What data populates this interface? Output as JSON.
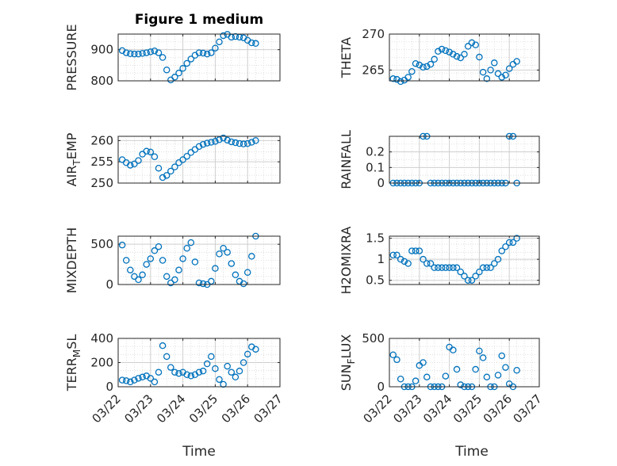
{
  "figure": {
    "title": "Figure 1 medium"
  },
  "chart_data": [
    {
      "type": "scatter",
      "panel": "PRESSURE",
      "ylabel": "PRESSURE",
      "xlim": [
        "03/22",
        "03/27"
      ],
      "ylim": [
        800,
        950
      ],
      "yticks": [
        800,
        900
      ],
      "xticks": [
        "03/22",
        "03/23",
        "03/24",
        "03/25",
        "03/26",
        "03/27"
      ],
      "grid": true,
      "x": [
        "2023-03-22T03:00",
        "2023-03-22T06:00",
        "2023-03-22T09:00",
        "2023-03-22T12:00",
        "2023-03-22T15:00",
        "2023-03-22T18:00",
        "2023-03-22T21:00",
        "2023-03-23T00:00",
        "2023-03-23T03:00",
        "2023-03-23T06:00",
        "2023-03-23T09:00",
        "2023-03-23T12:00",
        "2023-03-23T15:00",
        "2023-03-23T18:00",
        "2023-03-23T21:00",
        "2023-03-24T00:00",
        "2023-03-24T03:00",
        "2023-03-24T06:00",
        "2023-03-24T09:00",
        "2023-03-24T12:00",
        "2023-03-24T15:00",
        "2023-03-24T18:00",
        "2023-03-24T21:00",
        "2023-03-25T00:00",
        "2023-03-25T03:00",
        "2023-03-25T06:00",
        "2023-03-25T09:00",
        "2023-03-25T12:00",
        "2023-03-25T15:00",
        "2023-03-25T18:00",
        "2023-03-25T21:00",
        "2023-03-26T00:00",
        "2023-03-26T03:00",
        "2023-03-26T06:00"
      ],
      "y": [
        897,
        890,
        887,
        886,
        886,
        888,
        890,
        893,
        896,
        890,
        875,
        835,
        803,
        812,
        825,
        840,
        856,
        870,
        882,
        890,
        889,
        886,
        890,
        905,
        925,
        945,
        949,
        940,
        942,
        940,
        938,
        930,
        922,
        920
      ]
    },
    {
      "type": "scatter",
      "panel": "THETA",
      "ylabel": "THETA",
      "xlim": [
        "03/22",
        "03/27"
      ],
      "ylim": [
        263.5,
        270
      ],
      "yticks": [
        265,
        270
      ],
      "xticks": [
        "03/22",
        "03/23",
        "03/24",
        "03/25",
        "03/26",
        "03/27"
      ],
      "grid": true,
      "x": [
        "2023-03-22T03:00",
        "2023-03-22T06:00",
        "2023-03-22T09:00",
        "2023-03-22T12:00",
        "2023-03-22T15:00",
        "2023-03-22T18:00",
        "2023-03-22T21:00",
        "2023-03-23T00:00",
        "2023-03-23T03:00",
        "2023-03-23T06:00",
        "2023-03-23T09:00",
        "2023-03-23T12:00",
        "2023-03-23T15:00",
        "2023-03-23T18:00",
        "2023-03-23T21:00",
        "2023-03-24T00:00",
        "2023-03-24T03:00",
        "2023-03-24T06:00",
        "2023-03-24T09:00",
        "2023-03-24T12:00",
        "2023-03-24T15:00",
        "2023-03-24T18:00",
        "2023-03-24T21:00",
        "2023-03-25T00:00",
        "2023-03-25T03:00",
        "2023-03-25T06:00",
        "2023-03-25T09:00",
        "2023-03-25T12:00",
        "2023-03-25T15:00",
        "2023-03-25T18:00",
        "2023-03-25T21:00",
        "2023-03-26T00:00",
        "2023-03-26T03:00",
        "2023-03-26T06:00"
      ],
      "y": [
        263.8,
        263.7,
        263.4,
        263.6,
        264.0,
        264.8,
        265.9,
        265.7,
        265.4,
        265.5,
        265.8,
        266.5,
        267.6,
        267.9,
        267.7,
        267.5,
        267.2,
        266.9,
        266.7,
        267.2,
        268.3,
        268.8,
        268.5,
        266.8,
        264.7,
        263.8,
        265.0,
        266.0,
        264.5,
        264.0,
        264.3,
        265.2,
        265.8,
        266.2
      ]
    },
    {
      "type": "scatter",
      "panel": "AIR_TEMP",
      "ylabel": "AIR_TEMP",
      "xlim": [
        "03/22",
        "03/27"
      ],
      "ylim": [
        250,
        261
      ],
      "yticks": [
        250,
        255,
        260
      ],
      "xticks": [
        "03/22",
        "03/23",
        "03/24",
        "03/25",
        "03/26",
        "03/27"
      ],
      "grid": true,
      "x": [
        "2023-03-22T03:00",
        "2023-03-22T06:00",
        "2023-03-22T09:00",
        "2023-03-22T12:00",
        "2023-03-22T15:00",
        "2023-03-22T18:00",
        "2023-03-22T21:00",
        "2023-03-23T00:00",
        "2023-03-23T03:00",
        "2023-03-23T06:00",
        "2023-03-23T09:00",
        "2023-03-23T12:00",
        "2023-03-23T15:00",
        "2023-03-23T18:00",
        "2023-03-23T21:00",
        "2023-03-24T00:00",
        "2023-03-24T03:00",
        "2023-03-24T06:00",
        "2023-03-24T09:00",
        "2023-03-24T12:00",
        "2023-03-24T15:00",
        "2023-03-24T18:00",
        "2023-03-24T21:00",
        "2023-03-25T00:00",
        "2023-03-25T03:00",
        "2023-03-25T06:00",
        "2023-03-25T09:00",
        "2023-03-25T12:00",
        "2023-03-25T15:00",
        "2023-03-25T18:00",
        "2023-03-25T21:00",
        "2023-03-26T00:00",
        "2023-03-26T03:00",
        "2023-03-26T06:00"
      ],
      "y": [
        255.5,
        254.8,
        254.2,
        254.5,
        255.3,
        256.8,
        257.5,
        257.3,
        256.2,
        253.5,
        251.3,
        251.8,
        252.8,
        253.8,
        254.8,
        255.5,
        256.3,
        257.2,
        257.9,
        258.6,
        259.1,
        259.4,
        259.6,
        259.8,
        260.2,
        260.6,
        260.1,
        259.7,
        259.5,
        259.3,
        259.2,
        259.3,
        259.6,
        260.0
      ]
    },
    {
      "type": "scatter",
      "panel": "RAINFALL",
      "ylabel": "RAINFALL",
      "xlim": [
        "03/22",
        "03/27"
      ],
      "ylim": [
        0,
        0.3
      ],
      "yticks": [
        0,
        0.1,
        0.2
      ],
      "xticks": [
        "03/22",
        "03/23",
        "03/24",
        "03/25",
        "03/26",
        "03/27"
      ],
      "grid": true,
      "x": [
        "2023-03-22T03:00",
        "2023-03-22T06:00",
        "2023-03-22T09:00",
        "2023-03-22T12:00",
        "2023-03-22T15:00",
        "2023-03-22T18:00",
        "2023-03-22T21:00",
        "2023-03-23T00:00",
        "2023-03-23T03:00",
        "2023-03-23T06:00",
        "2023-03-23T09:00",
        "2023-03-23T12:00",
        "2023-03-23T15:00",
        "2023-03-23T18:00",
        "2023-03-23T21:00",
        "2023-03-24T00:00",
        "2023-03-24T03:00",
        "2023-03-24T06:00",
        "2023-03-24T09:00",
        "2023-03-24T12:00",
        "2023-03-24T15:00",
        "2023-03-24T18:00",
        "2023-03-24T21:00",
        "2023-03-25T00:00",
        "2023-03-25T03:00",
        "2023-03-25T06:00",
        "2023-03-25T09:00",
        "2023-03-25T12:00",
        "2023-03-25T15:00",
        "2023-03-25T18:00",
        "2023-03-25T21:00",
        "2023-03-26T00:00",
        "2023-03-26T03:00",
        "2023-03-26T06:00"
      ],
      "y": [
        0,
        0,
        0,
        0,
        0,
        0,
        0,
        0,
        0.3,
        0.3,
        0,
        0,
        0,
        0,
        0,
        0,
        0,
        0,
        0,
        0,
        0,
        0,
        0,
        0,
        0,
        0,
        0,
        0,
        0,
        0,
        0,
        0.3,
        0.3,
        0
      ]
    },
    {
      "type": "scatter",
      "panel": "MIXDEPTH",
      "ylabel": "MIXDEPTH",
      "xlim": [
        "03/22",
        "03/27"
      ],
      "ylim": [
        0,
        600
      ],
      "yticks": [
        0,
        500
      ],
      "xticks": [
        "03/22",
        "03/23",
        "03/24",
        "03/25",
        "03/26",
        "03/27"
      ],
      "grid": true,
      "x": [
        "2023-03-22T03:00",
        "2023-03-22T06:00",
        "2023-03-22T09:00",
        "2023-03-22T12:00",
        "2023-03-22T15:00",
        "2023-03-22T18:00",
        "2023-03-22T21:00",
        "2023-03-23T00:00",
        "2023-03-23T03:00",
        "2023-03-23T06:00",
        "2023-03-23T09:00",
        "2023-03-23T12:00",
        "2023-03-23T15:00",
        "2023-03-23T18:00",
        "2023-03-23T21:00",
        "2023-03-24T00:00",
        "2023-03-24T03:00",
        "2023-03-24T06:00",
        "2023-03-24T09:00",
        "2023-03-24T12:00",
        "2023-03-24T15:00",
        "2023-03-24T18:00",
        "2023-03-24T21:00",
        "2023-03-25T00:00",
        "2023-03-25T03:00",
        "2023-03-25T06:00",
        "2023-03-25T09:00",
        "2023-03-25T12:00",
        "2023-03-25T15:00",
        "2023-03-25T18:00",
        "2023-03-25T21:00",
        "2023-03-26T00:00",
        "2023-03-26T03:00",
        "2023-03-26T06:00"
      ],
      "y": [
        490,
        300,
        180,
        100,
        60,
        120,
        250,
        320,
        420,
        470,
        300,
        100,
        20,
        60,
        180,
        320,
        450,
        520,
        280,
        20,
        10,
        0,
        40,
        200,
        380,
        450,
        400,
        260,
        120,
        40,
        10,
        150,
        350,
        600
      ]
    },
    {
      "type": "scatter",
      "panel": "H2OMIXRA",
      "ylabel": "H2OMIXRA",
      "xlim": [
        "03/22",
        "03/27"
      ],
      "ylim": [
        0.4,
        1.55
      ],
      "yticks": [
        0.5,
        1,
        1.5
      ],
      "xticks": [
        "03/22",
        "03/23",
        "03/24",
        "03/25",
        "03/26",
        "03/27"
      ],
      "grid": true,
      "x": [
        "2023-03-22T03:00",
        "2023-03-22T06:00",
        "2023-03-22T09:00",
        "2023-03-22T12:00",
        "2023-03-22T15:00",
        "2023-03-22T18:00",
        "2023-03-22T21:00",
        "2023-03-23T00:00",
        "2023-03-23T03:00",
        "2023-03-23T06:00",
        "2023-03-23T09:00",
        "2023-03-23T12:00",
        "2023-03-23T15:00",
        "2023-03-23T18:00",
        "2023-03-23T21:00",
        "2023-03-24T00:00",
        "2023-03-24T03:00",
        "2023-03-24T06:00",
        "2023-03-24T09:00",
        "2023-03-24T12:00",
        "2023-03-24T15:00",
        "2023-03-24T18:00",
        "2023-03-24T21:00",
        "2023-03-25T00:00",
        "2023-03-25T03:00",
        "2023-03-25T06:00",
        "2023-03-25T09:00",
        "2023-03-25T12:00",
        "2023-03-25T15:00",
        "2023-03-25T18:00",
        "2023-03-25T21:00",
        "2023-03-26T00:00",
        "2023-03-26T03:00",
        "2023-03-26T06:00"
      ],
      "y": [
        1.1,
        1.1,
        1.0,
        0.95,
        0.9,
        1.2,
        1.2,
        1.2,
        1.0,
        0.9,
        0.9,
        0.8,
        0.8,
        0.8,
        0.8,
        0.8,
        0.8,
        0.8,
        0.7,
        0.6,
        0.5,
        0.5,
        0.6,
        0.7,
        0.8,
        0.8,
        0.8,
        0.9,
        1.0,
        1.2,
        1.3,
        1.4,
        1.4,
        1.5
      ]
    },
    {
      "type": "scatter",
      "panel": "TERR_MSL",
      "ylabel": "TERR_MSL",
      "xlim": [
        "03/22",
        "03/27"
      ],
      "ylim": [
        0,
        400
      ],
      "yticks": [
        0,
        200,
        400
      ],
      "xticks": [
        "03/22",
        "03/23",
        "03/24",
        "03/25",
        "03/26",
        "03/27"
      ],
      "grid": true,
      "x": [
        "2023-03-22T03:00",
        "2023-03-22T06:00",
        "2023-03-22T09:00",
        "2023-03-22T12:00",
        "2023-03-22T15:00",
        "2023-03-22T18:00",
        "2023-03-22T21:00",
        "2023-03-23T00:00",
        "2023-03-23T03:00",
        "2023-03-23T06:00",
        "2023-03-23T09:00",
        "2023-03-23T12:00",
        "2023-03-23T15:00",
        "2023-03-23T18:00",
        "2023-03-23T21:00",
        "2023-03-24T00:00",
        "2023-03-24T03:00",
        "2023-03-24T06:00",
        "2023-03-24T09:00",
        "2023-03-24T12:00",
        "2023-03-24T15:00",
        "2023-03-24T18:00",
        "2023-03-24T21:00",
        "2023-03-25T00:00",
        "2023-03-25T03:00",
        "2023-03-25T06:00",
        "2023-03-25T09:00",
        "2023-03-25T12:00",
        "2023-03-25T15:00",
        "2023-03-25T18:00",
        "2023-03-25T21:00",
        "2023-03-26T00:00",
        "2023-03-26T03:00",
        "2023-03-26T06:00"
      ],
      "y": [
        55,
        50,
        40,
        55,
        70,
        80,
        90,
        70,
        40,
        120,
        340,
        250,
        160,
        120,
        110,
        120,
        100,
        90,
        100,
        120,
        130,
        190,
        250,
        150,
        60,
        20,
        170,
        120,
        80,
        130,
        200,
        270,
        330,
        310
      ]
    },
    {
      "type": "scatter",
      "panel": "SUN_FLUX",
      "ylabel": "SUN_FLUX",
      "xlim": [
        "03/22",
        "03/27"
      ],
      "ylim": [
        0,
        500
      ],
      "yticks": [
        0,
        500
      ],
      "xticks": [
        "03/22",
        "03/23",
        "03/24",
        "03/25",
        "03/26",
        "03/27"
      ],
      "grid": true,
      "x": [
        "2023-03-22T03:00",
        "2023-03-22T06:00",
        "2023-03-22T09:00",
        "2023-03-22T12:00",
        "2023-03-22T15:00",
        "2023-03-22T18:00",
        "2023-03-22T21:00",
        "2023-03-23T00:00",
        "2023-03-23T03:00",
        "2023-03-23T06:00",
        "2023-03-23T09:00",
        "2023-03-23T12:00",
        "2023-03-23T15:00",
        "2023-03-23T18:00",
        "2023-03-23T21:00",
        "2023-03-24T00:00",
        "2023-03-24T03:00",
        "2023-03-24T06:00",
        "2023-03-24T09:00",
        "2023-03-24T12:00",
        "2023-03-24T15:00",
        "2023-03-24T18:00",
        "2023-03-24T21:00",
        "2023-03-25T00:00",
        "2023-03-25T03:00",
        "2023-03-25T06:00",
        "2023-03-25T09:00",
        "2023-03-25T12:00",
        "2023-03-25T15:00",
        "2023-03-25T18:00",
        "2023-03-25T21:00",
        "2023-03-26T00:00",
        "2023-03-26T03:00",
        "2023-03-26T06:00"
      ],
      "y": [
        330,
        280,
        80,
        0,
        0,
        0,
        60,
        220,
        250,
        100,
        0,
        0,
        0,
        0,
        110,
        410,
        380,
        180,
        20,
        0,
        0,
        0,
        180,
        370,
        300,
        100,
        0,
        0,
        120,
        320,
        200,
        30,
        0,
        170
      ]
    }
  ],
  "axes": {
    "xlabel_left": "Time",
    "xlabel_right": "Time"
  },
  "colors": {
    "marker": "#0072BD",
    "grid": "#D9D9D9",
    "axis": "#262626"
  }
}
